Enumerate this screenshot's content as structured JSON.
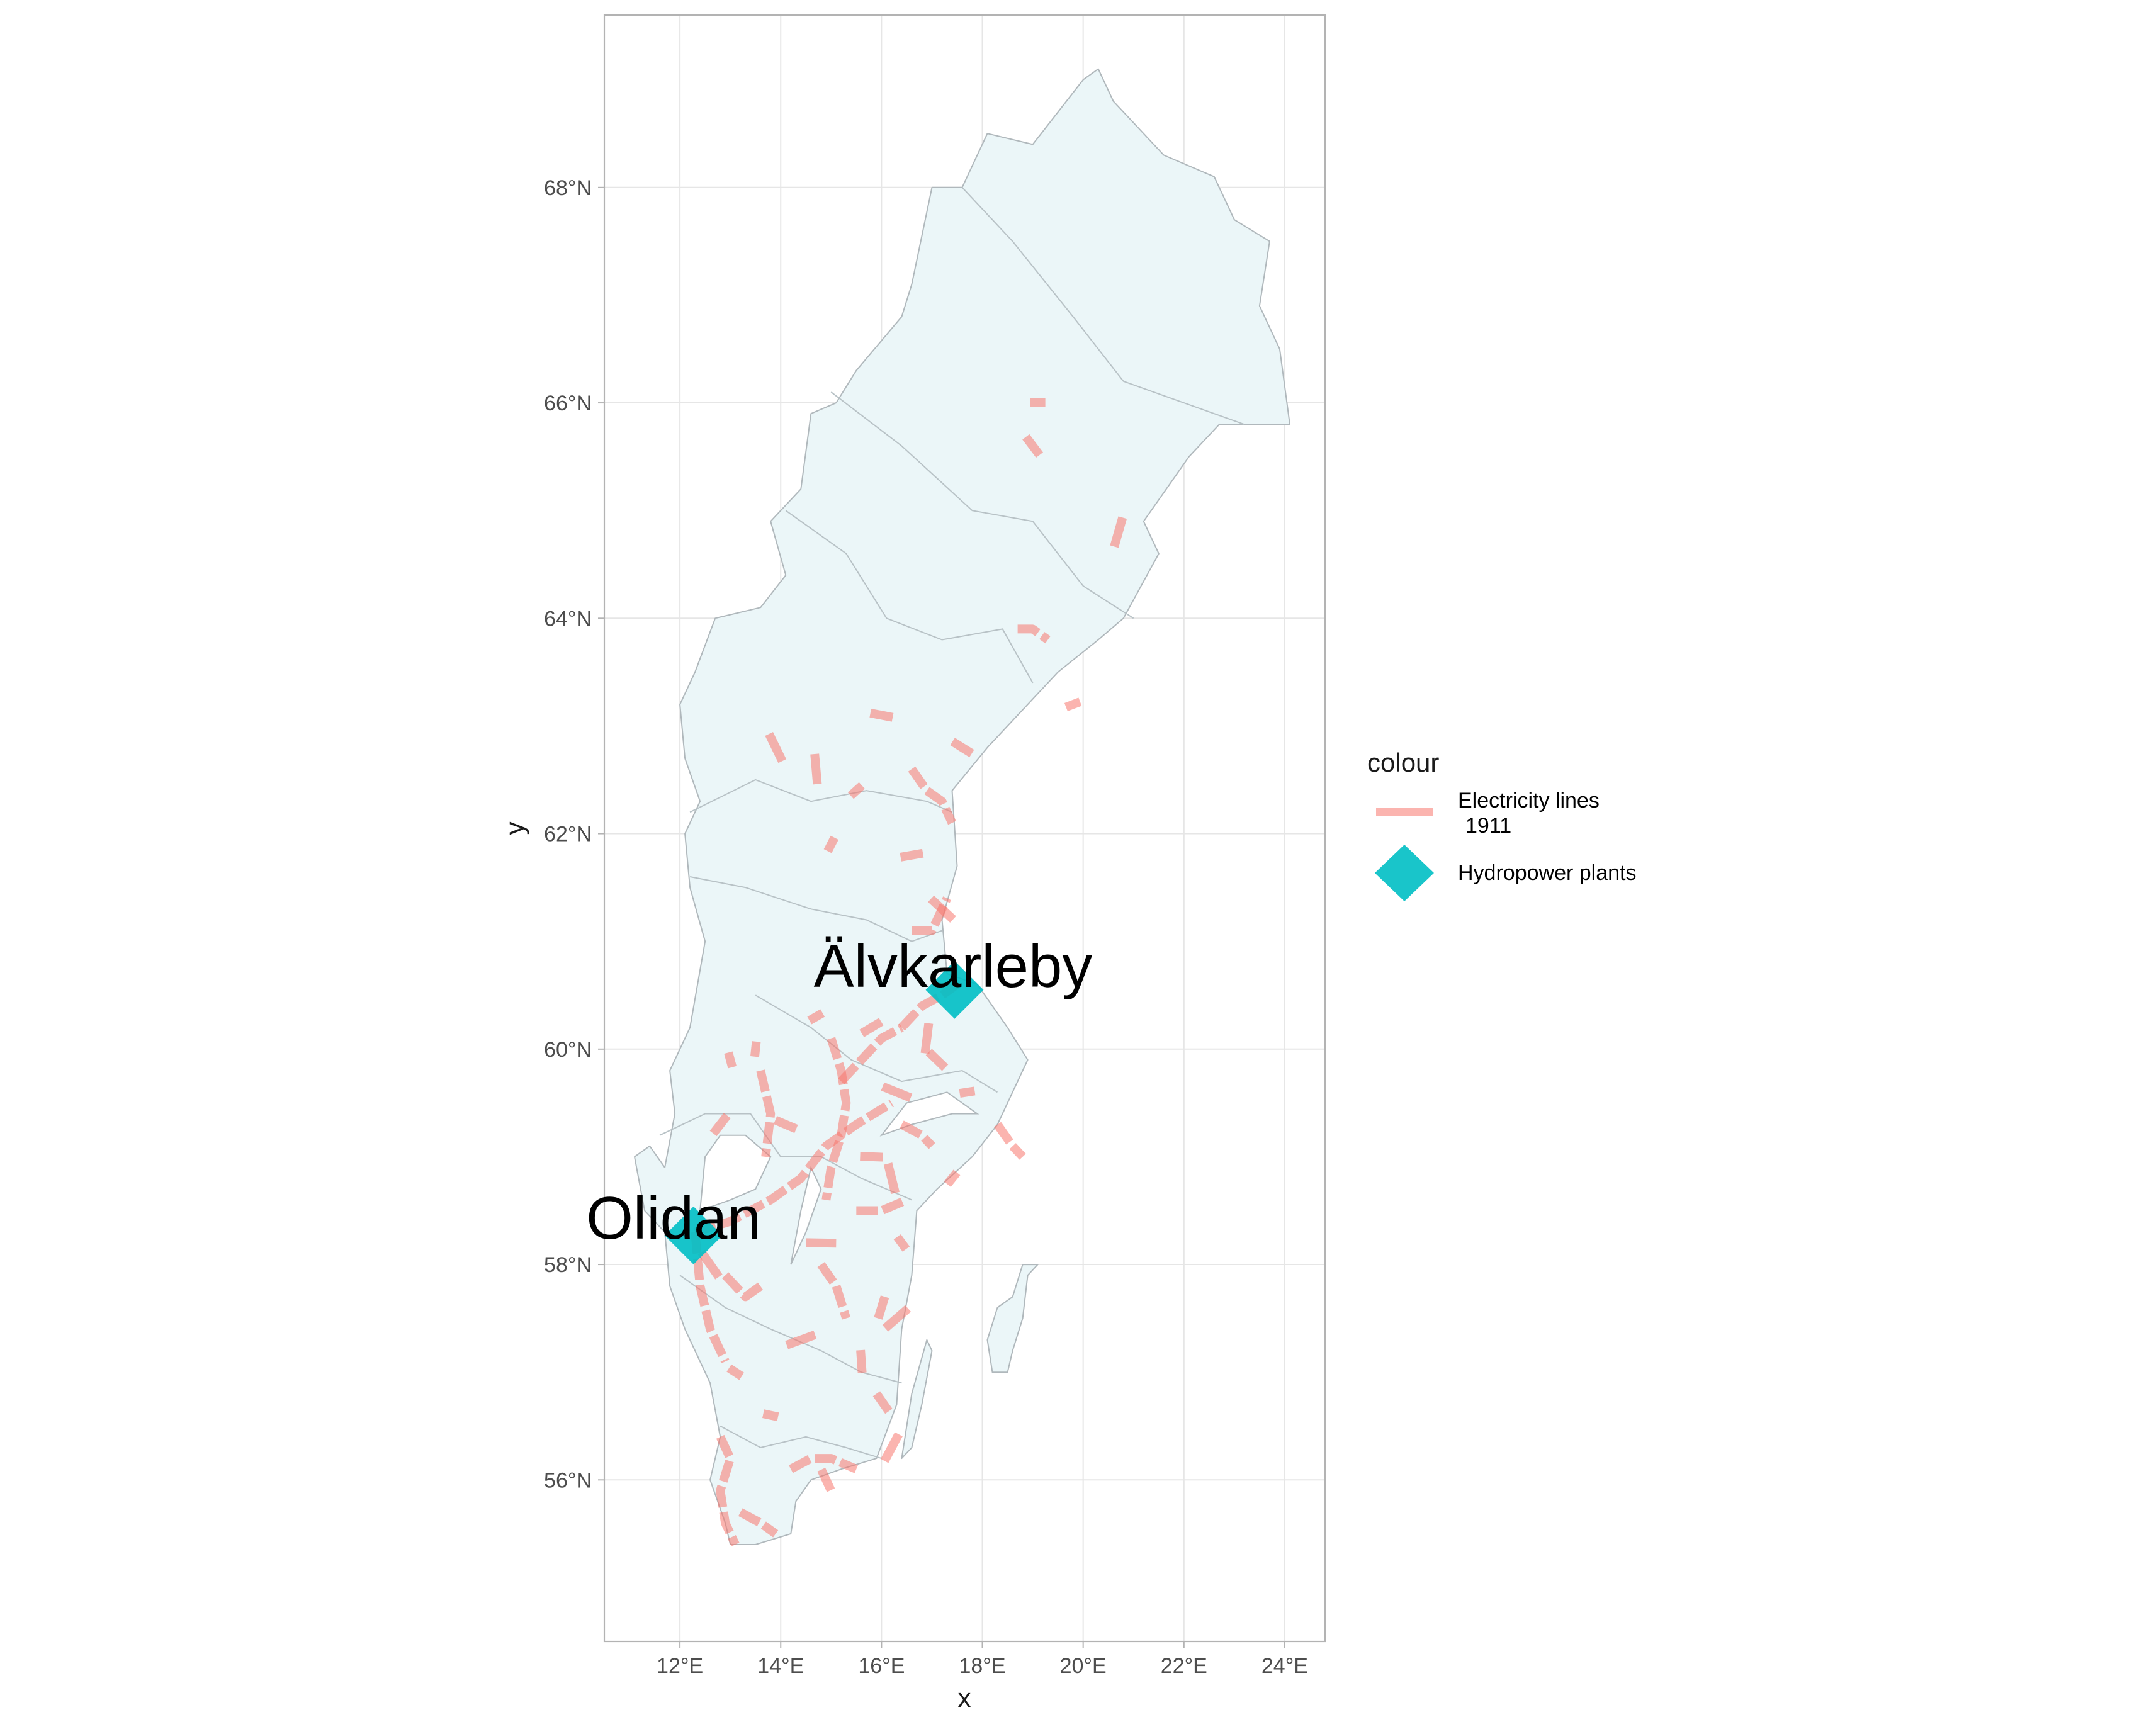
{
  "chart_data": {
    "type": "map",
    "xlabel": "x",
    "ylabel": "y",
    "x_ticks": [
      12,
      14,
      16,
      18,
      20,
      22,
      24
    ],
    "x_tick_labels": [
      "12°E",
      "14°E",
      "16°E",
      "18°E",
      "20°E",
      "22°E",
      "24°E"
    ],
    "y_ticks": [
      56,
      58,
      60,
      62,
      64,
      66,
      68
    ],
    "y_tick_labels": [
      "56°N",
      "58°N",
      "60°N",
      "62°N",
      "64°N",
      "66°N",
      "68°N"
    ],
    "xlim": [
      10.5,
      24.8
    ],
    "ylim": [
      54.5,
      69.6
    ],
    "grid": true,
    "legend": {
      "title": "colour",
      "position": "right",
      "items": [
        {
          "label_line1": "Electricity lines",
          "label_line2": "1911",
          "symbol": "line",
          "color": "#F8766D"
        },
        {
          "label": "Hydropower plants",
          "symbol": "diamond",
          "color": "#00BFC4"
        }
      ]
    },
    "hydropower_plants": [
      {
        "name": "Älvkarleby",
        "lon": 17.45,
        "lat": 60.55
      },
      {
        "name": "Olidan",
        "lon": 12.27,
        "lat": 58.27
      }
    ],
    "country_outline": [
      [
        11.1,
        59.0
      ],
      [
        11.4,
        59.1
      ],
      [
        11.7,
        58.9
      ],
      [
        11.9,
        59.4
      ],
      [
        11.8,
        59.8
      ],
      [
        12.2,
        60.2
      ],
      [
        12.5,
        61.0
      ],
      [
        12.2,
        61.5
      ],
      [
        12.1,
        62.0
      ],
      [
        12.4,
        62.3
      ],
      [
        12.1,
        62.7
      ],
      [
        12.0,
        63.2
      ],
      [
        12.3,
        63.5
      ],
      [
        12.7,
        64.0
      ],
      [
        13.6,
        64.1
      ],
      [
        14.1,
        64.4
      ],
      [
        13.8,
        64.9
      ],
      [
        14.4,
        65.2
      ],
      [
        14.6,
        65.9
      ],
      [
        15.1,
        66.0
      ],
      [
        15.5,
        66.3
      ],
      [
        16.4,
        66.8
      ],
      [
        16.6,
        67.1
      ],
      [
        17.0,
        68.0
      ],
      [
        17.6,
        68.0
      ],
      [
        18.1,
        68.5
      ],
      [
        19.0,
        68.4
      ],
      [
        20.0,
        69.0
      ],
      [
        20.3,
        69.1
      ],
      [
        20.6,
        68.8
      ],
      [
        21.6,
        68.3
      ],
      [
        22.6,
        68.1
      ],
      [
        23.0,
        67.7
      ],
      [
        23.7,
        67.5
      ],
      [
        23.5,
        66.9
      ],
      [
        23.9,
        66.5
      ],
      [
        24.1,
        65.8
      ],
      [
        23.2,
        65.8
      ],
      [
        22.7,
        65.8
      ],
      [
        22.1,
        65.5
      ],
      [
        21.5,
        65.1
      ],
      [
        21.2,
        64.9
      ],
      [
        21.5,
        64.6
      ],
      [
        20.8,
        64.0
      ],
      [
        20.3,
        63.8
      ],
      [
        19.5,
        63.5
      ],
      [
        18.9,
        63.2
      ],
      [
        18.1,
        62.8
      ],
      [
        17.4,
        62.4
      ],
      [
        17.5,
        61.7
      ],
      [
        17.2,
        61.2
      ],
      [
        17.3,
        60.7
      ],
      [
        17.9,
        60.6
      ],
      [
        18.5,
        60.2
      ],
      [
        18.9,
        59.9
      ],
      [
        18.3,
        59.3
      ],
      [
        17.8,
        59.0
      ],
      [
        17.1,
        58.7
      ],
      [
        16.7,
        58.5
      ],
      [
        16.6,
        57.9
      ],
      [
        16.4,
        57.4
      ],
      [
        16.3,
        56.7
      ],
      [
        15.9,
        56.2
      ],
      [
        15.2,
        56.1
      ],
      [
        14.6,
        56.0
      ],
      [
        14.3,
        55.8
      ],
      [
        14.2,
        55.5
      ],
      [
        13.5,
        55.4
      ],
      [
        13.0,
        55.4
      ],
      [
        12.9,
        55.6
      ],
      [
        12.6,
        56.0
      ],
      [
        12.8,
        56.4
      ],
      [
        12.6,
        56.9
      ],
      [
        12.1,
        57.4
      ],
      [
        11.8,
        57.8
      ],
      [
        11.7,
        58.3
      ],
      [
        11.3,
        58.5
      ]
    ],
    "gotland_outline": [
      [
        18.1,
        57.3
      ],
      [
        18.2,
        57.0
      ],
      [
        18.5,
        57.0
      ],
      [
        18.6,
        57.2
      ],
      [
        18.8,
        57.5
      ],
      [
        18.9,
        57.9
      ],
      [
        19.1,
        58.0
      ],
      [
        18.8,
        58.0
      ],
      [
        18.6,
        57.7
      ],
      [
        18.3,
        57.6
      ]
    ],
    "oland_outline": [
      [
        16.4,
        56.2
      ],
      [
        16.6,
        56.3
      ],
      [
        16.8,
        56.7
      ],
      [
        17.0,
        57.2
      ],
      [
        16.9,
        57.3
      ],
      [
        16.6,
        56.8
      ]
    ],
    "lakes": [
      [
        [
          12.4,
          58.5
        ],
        [
          13.0,
          58.6
        ],
        [
          13.5,
          58.7
        ],
        [
          13.8,
          59.0
        ],
        [
          13.3,
          59.2
        ],
        [
          12.8,
          59.2
        ],
        [
          12.5,
          59.0
        ]
      ],
      [
        [
          14.2,
          58.0
        ],
        [
          14.5,
          58.3
        ],
        [
          14.8,
          58.7
        ],
        [
          14.6,
          58.9
        ],
        [
          14.4,
          58.5
        ]
      ],
      [
        [
          16.0,
          59.2
        ],
        [
          16.6,
          59.3
        ],
        [
          17.4,
          59.4
        ],
        [
          17.9,
          59.4
        ],
        [
          17.3,
          59.6
        ],
        [
          16.5,
          59.5
        ]
      ]
    ],
    "regions": [
      [
        [
          17.6,
          68.0
        ],
        [
          18.6,
          67.5
        ],
        [
          19.8,
          66.8
        ],
        [
          20.8,
          66.2
        ],
        [
          22.0,
          66.0
        ],
        [
          23.2,
          65.8
        ]
      ],
      [
        [
          15.0,
          66.1
        ],
        [
          16.4,
          65.6
        ],
        [
          17.8,
          65.0
        ],
        [
          19.0,
          64.9
        ],
        [
          20.0,
          64.3
        ],
        [
          21.0,
          64.0
        ]
      ],
      [
        [
          14.1,
          65.0
        ],
        [
          15.3,
          64.6
        ],
        [
          16.1,
          64.0
        ],
        [
          17.2,
          63.8
        ],
        [
          18.4,
          63.9
        ],
        [
          19.0,
          63.4
        ]
      ],
      [
        [
          12.2,
          62.2
        ],
        [
          13.5,
          62.5
        ],
        [
          14.6,
          62.3
        ],
        [
          15.7,
          62.4
        ],
        [
          16.9,
          62.3
        ],
        [
          17.4,
          62.2
        ]
      ],
      [
        [
          12.2,
          61.6
        ],
        [
          13.3,
          61.5
        ],
        [
          14.6,
          61.3
        ],
        [
          15.7,
          61.2
        ],
        [
          16.6,
          61.0
        ],
        [
          17.2,
          61.1
        ]
      ],
      [
        [
          13.5,
          60.5
        ],
        [
          14.6,
          60.2
        ],
        [
          15.4,
          59.9
        ],
        [
          16.4,
          59.7
        ],
        [
          17.6,
          59.8
        ],
        [
          18.3,
          59.6
        ]
      ],
      [
        [
          11.6,
          59.2
        ],
        [
          12.5,
          59.4
        ],
        [
          13.4,
          59.4
        ],
        [
          14.0,
          59.0
        ],
        [
          14.8,
          59.0
        ],
        [
          15.6,
          58.8
        ],
        [
          16.6,
          58.6
        ]
      ],
      [
        [
          12.0,
          57.9
        ],
        [
          12.9,
          57.6
        ],
        [
          13.8,
          57.4
        ],
        [
          14.8,
          57.2
        ],
        [
          15.6,
          57.0
        ],
        [
          16.4,
          56.9
        ]
      ],
      [
        [
          12.8,
          56.5
        ],
        [
          13.6,
          56.3
        ],
        [
          14.5,
          56.4
        ],
        [
          15.3,
          56.3
        ],
        [
          16.0,
          56.2
        ]
      ]
    ],
    "electricity_lines": [
      [
        [
          12.3,
          58.3
        ],
        [
          12.4,
          57.8
        ],
        [
          12.6,
          57.4
        ],
        [
          12.9,
          57.1
        ]
      ],
      [
        [
          12.3,
          58.3
        ],
        [
          13.0,
          58.4
        ],
        [
          13.8,
          58.6
        ],
        [
          14.4,
          58.8
        ],
        [
          14.9,
          59.1
        ],
        [
          15.5,
          59.3
        ],
        [
          16.2,
          59.5
        ]
      ],
      [
        [
          15.0,
          60.1
        ],
        [
          15.2,
          59.8
        ],
        [
          15.3,
          59.5
        ],
        [
          15.2,
          59.2
        ],
        [
          15.0,
          58.9
        ],
        [
          14.9,
          58.6
        ]
      ],
      [
        [
          16.4,
          60.2
        ],
        [
          16.8,
          60.4
        ],
        [
          17.2,
          60.5
        ],
        [
          17.5,
          60.6
        ]
      ],
      [
        [
          15.2,
          59.7
        ],
        [
          15.6,
          59.9
        ],
        [
          16.0,
          60.1
        ],
        [
          16.4,
          60.2
        ]
      ],
      [
        [
          15.5,
          58.5
        ],
        [
          16.0,
          58.5
        ],
        [
          16.5,
          58.6
        ]
      ],
      [
        [
          16.6,
          61.1
        ],
        [
          17.0,
          61.1
        ],
        [
          17.3,
          61.4
        ]
      ],
      [
        [
          16.6,
          62.6
        ],
        [
          16.9,
          62.4
        ],
        [
          17.2,
          62.3
        ],
        [
          17.4,
          62.1
        ]
      ],
      [
        [
          18.7,
          63.9
        ],
        [
          19.0,
          63.9
        ],
        [
          19.3,
          63.8
        ]
      ],
      [
        [
          12.8,
          56.4
        ],
        [
          13.0,
          56.2
        ],
        [
          12.8,
          55.9
        ],
        [
          12.9,
          55.6
        ],
        [
          13.1,
          55.4
        ]
      ],
      [
        [
          13.2,
          55.7
        ],
        [
          13.6,
          55.6
        ],
        [
          13.9,
          55.5
        ]
      ],
      [
        [
          14.2,
          56.1
        ],
        [
          14.6,
          56.2
        ],
        [
          15.0,
          56.2
        ],
        [
          15.5,
          56.1
        ]
      ],
      [
        [
          13.6,
          59.8
        ],
        [
          13.8,
          59.4
        ],
        [
          13.7,
          59.0
        ]
      ],
      [
        [
          14.8,
          58.0
        ],
        [
          15.1,
          57.8
        ],
        [
          15.3,
          57.5
        ]
      ],
      [
        [
          12.9,
          57.9
        ],
        [
          13.3,
          57.7
        ],
        [
          13.6,
          57.8
        ]
      ],
      [
        [
          15.9,
          56.8
        ],
        [
          16.2,
          56.6
        ]
      ],
      [
        [
          16.4,
          59.3
        ],
        [
          16.8,
          59.2
        ],
        [
          17.0,
          59.1
        ]
      ],
      [
        [
          18.3,
          59.3
        ],
        [
          18.6,
          59.1
        ],
        [
          18.8,
          59.0
        ]
      ]
    ],
    "line_segments": [
      [
        19.1,
        66.0
      ],
      [
        19.0,
        65.6
      ],
      [
        20.7,
        64.8
      ],
      [
        19.8,
        63.2
      ],
      [
        17.6,
        62.8
      ],
      [
        14.7,
        62.6
      ],
      [
        15.5,
        62.4
      ],
      [
        16.0,
        63.1
      ],
      [
        13.9,
        62.8
      ],
      [
        15.0,
        61.9
      ],
      [
        16.6,
        61.8
      ],
      [
        17.2,
        61.3
      ],
      [
        13.5,
        60.0
      ],
      [
        15.8,
        60.2
      ],
      [
        16.3,
        59.6
      ],
      [
        13.0,
        59.9
      ],
      [
        12.8,
        59.3
      ],
      [
        14.8,
        58.2
      ],
      [
        16.4,
        58.2
      ],
      [
        16.0,
        57.6
      ],
      [
        14.4,
        57.3
      ],
      [
        13.1,
        57.0
      ],
      [
        15.6,
        57.1
      ],
      [
        16.3,
        57.5
      ],
      [
        13.8,
        56.6
      ],
      [
        14.9,
        56.0
      ],
      [
        16.2,
        56.3
      ],
      [
        17.7,
        59.6
      ],
      [
        17.1,
        59.9
      ],
      [
        16.9,
        60.1
      ],
      [
        14.7,
        60.3
      ],
      [
        14.1,
        59.3
      ],
      [
        16.2,
        58.8
      ],
      [
        17.4,
        58.8
      ],
      [
        15.8,
        59.0
      ],
      [
        12.6,
        58.0
      ]
    ]
  },
  "place_labels": {
    "alvkarleby": "Älvkarleby",
    "olidan": "Olidan"
  }
}
